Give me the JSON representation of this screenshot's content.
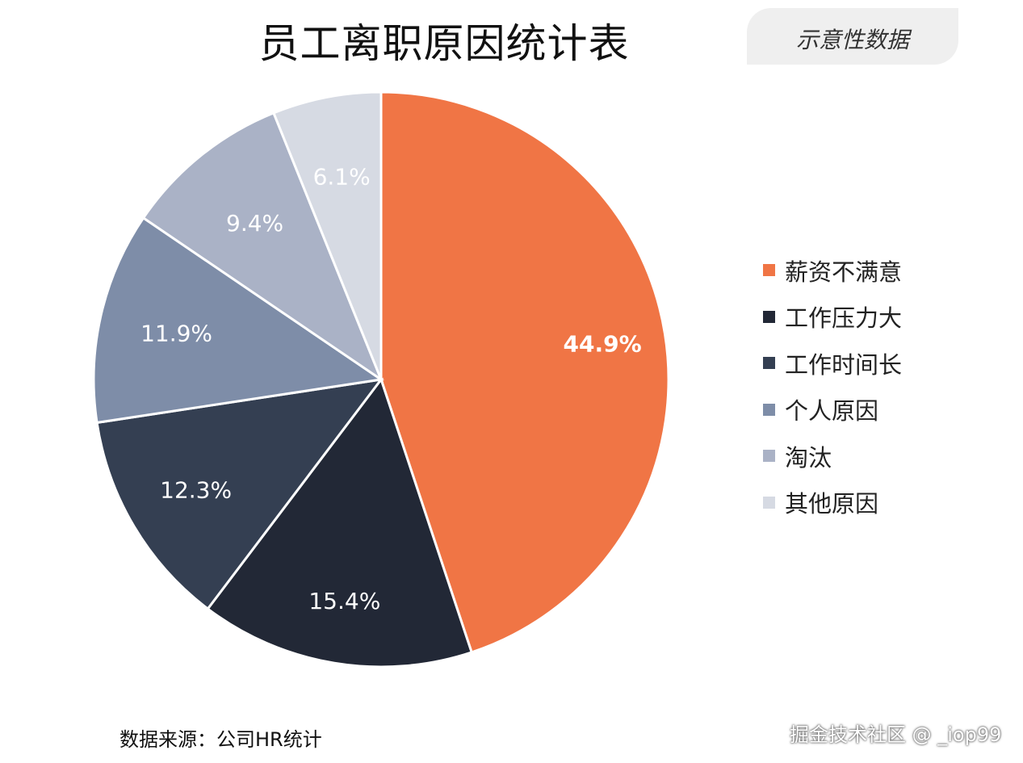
{
  "chart_data": {
    "type": "pie",
    "title": "员工离职原因统计表",
    "categories": [
      "薪资不满意",
      "工作压力大",
      "工作时间长",
      "个人原因",
      "淘汰",
      "其他原因"
    ],
    "values": [
      44.9,
      15.4,
      12.3,
      11.9,
      9.4,
      6.1
    ],
    "data_labels": [
      "44.9%",
      "15.4%",
      "12.3%",
      "11.9%",
      "9.4%",
      "6.1%"
    ],
    "colors": [
      "#f07545",
      "#222836",
      "#343f52",
      "#7e8da8",
      "#aab2c6",
      "#d6dae3"
    ],
    "label_colors": [
      "#ffffff",
      "#ffffff",
      "#ffffff",
      "#ffffff",
      "#ffffff",
      "#ffffff"
    ],
    "start": "top",
    "direction": "clockwise",
    "legend_position": "right"
  },
  "badge": "示意性数据",
  "source": "数据来源：公司HR统计",
  "watermark": "掘金技术社区 @ _iop99"
}
